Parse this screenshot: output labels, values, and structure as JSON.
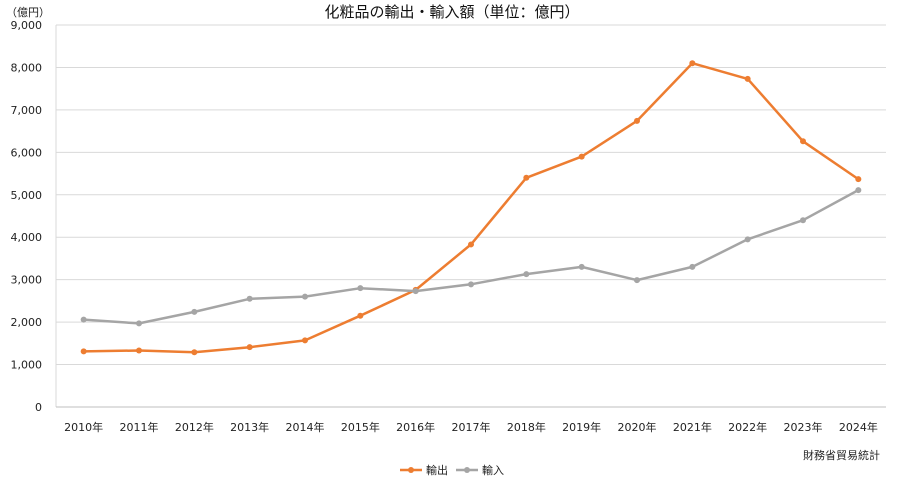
{
  "chart_data": {
    "type": "line",
    "title": "化粧品の輸出・輸入額（単位：億円）",
    "unit_label": "（億円）",
    "source": "財務省貿易統計",
    "categories": [
      "2010年",
      "2011年",
      "2012年",
      "2013年",
      "2014年",
      "2015年",
      "2016年",
      "2017年",
      "2018年",
      "2019年",
      "2020年",
      "2021年",
      "2022年",
      "2023年",
      "2024年"
    ],
    "ylim": [
      0,
      9000
    ],
    "yticks": [
      "0",
      "1,000",
      "2,000",
      "3,000",
      "4,000",
      "5,000",
      "6,000",
      "7,000",
      "8,000",
      "9,000"
    ],
    "grid": true,
    "legend_position": "bottom",
    "series": [
      {
        "name": "輸出",
        "color": "#ED7D31",
        "values": [
          1310,
          1330,
          1290,
          1410,
          1570,
          2150,
          2760,
          3830,
          5400,
          5900,
          6740,
          8100,
          7730,
          6260,
          5370
        ]
      },
      {
        "name": "輸入",
        "color": "#A5A5A5",
        "values": [
          2060,
          1970,
          2240,
          2550,
          2600,
          2800,
          2730,
          2890,
          3130,
          3300,
          2990,
          3300,
          3950,
          4400,
          5110
        ]
      }
    ]
  }
}
